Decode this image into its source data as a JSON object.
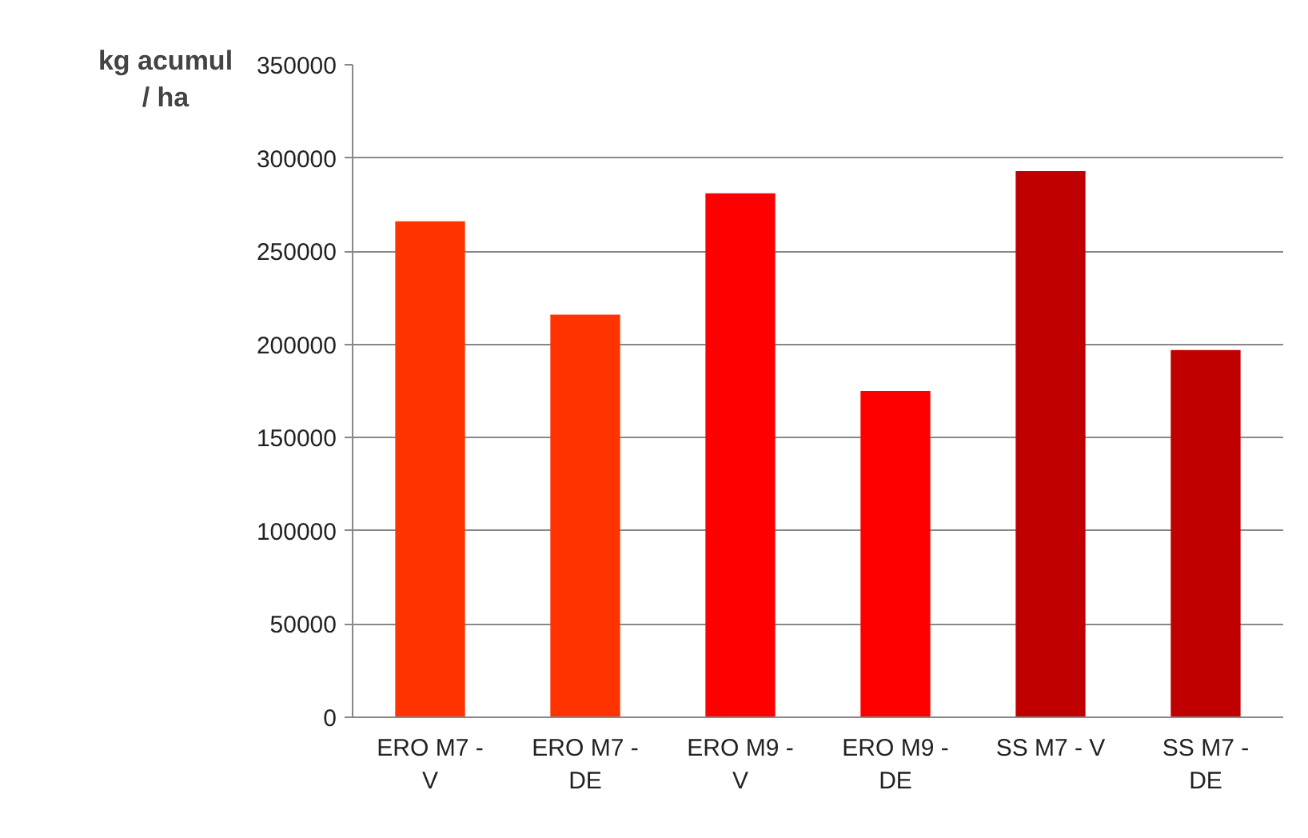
{
  "chart_data": {
    "type": "bar",
    "ylabel": "kg acumul / ha",
    "categories": [
      "ERO M7 - V",
      "ERO M7 - DE",
      "ERO M9 - V",
      "ERO M9 - DE",
      "SS M7 - V",
      "SS M7 - DE"
    ],
    "values": [
      266000,
      216000,
      281000,
      175000,
      293000,
      197000
    ],
    "colors": [
      "#ff3300",
      "#ff3300",
      "#ff0000",
      "#ff0000",
      "#c00000",
      "#c00000"
    ],
    "ylim": [
      0,
      350000
    ],
    "yticks": [
      0,
      50000,
      100000,
      150000,
      200000,
      250000,
      300000,
      350000
    ],
    "grid": "y"
  }
}
